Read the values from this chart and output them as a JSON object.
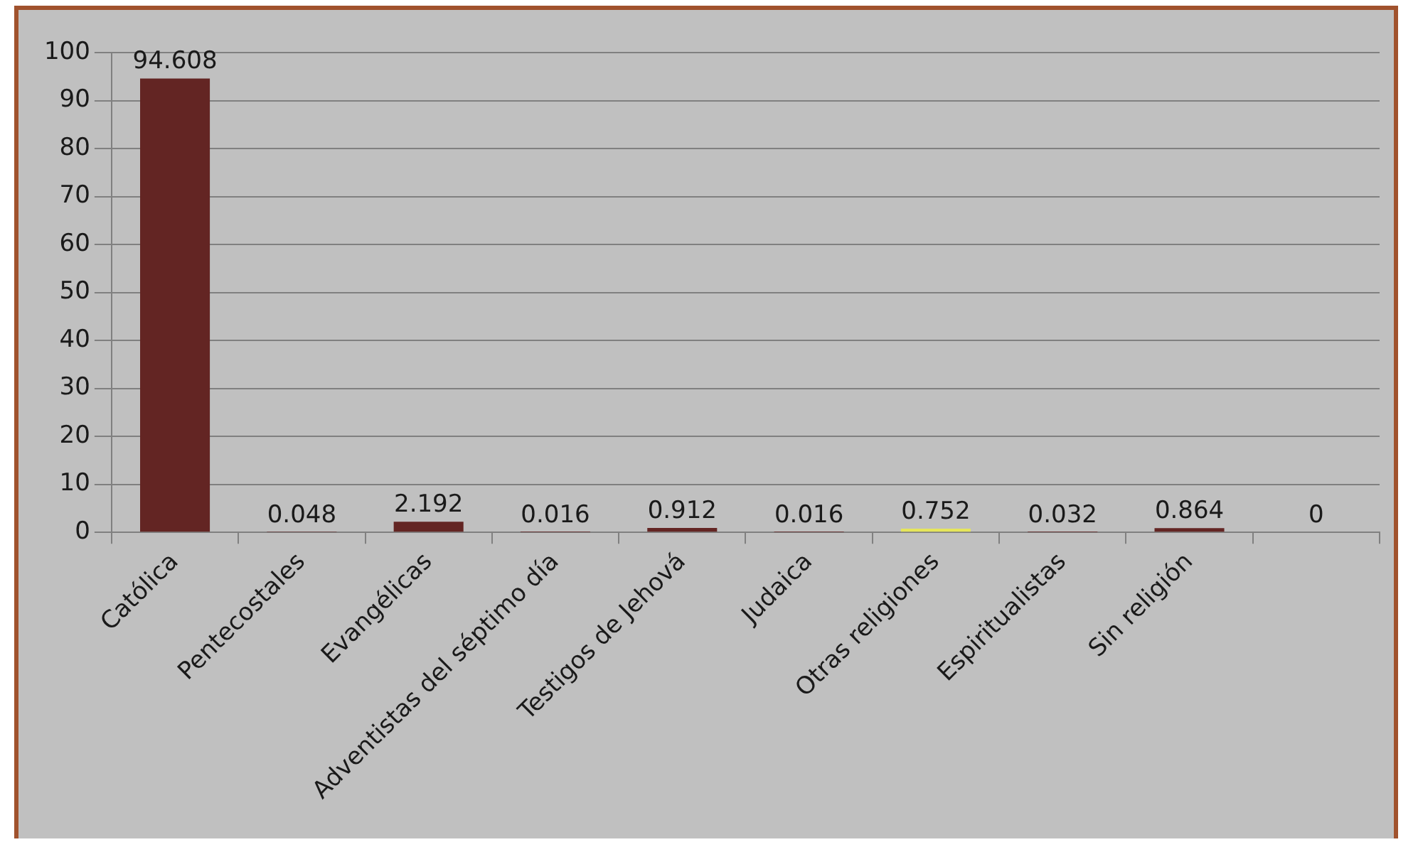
{
  "chart_data": {
    "type": "bar",
    "categories": [
      "Católica",
      "Pentecostales",
      "Evangélicas",
      "Adventistas del séptimo día",
      "Testigos de Jehová",
      "Judaica",
      "Otras religiones",
      "Espiritualistas",
      "Sin religión",
      null
    ],
    "values": [
      94.608,
      0.048,
      2.192,
      0.016,
      0.912,
      0.016,
      0.752,
      0.032,
      0.864,
      0
    ],
    "colors": [
      "#632523",
      "#632523",
      "#632523",
      "#632523",
      "#632523",
      "#632523",
      "#e6e65a",
      "#632523",
      "#632523",
      "#632523"
    ],
    "ylim": [
      0,
      100
    ],
    "yticks": [
      0,
      10,
      20,
      30,
      40,
      50,
      60,
      70,
      80,
      90,
      100
    ],
    "grid": "y",
    "legend": false,
    "data_labels": true
  }
}
